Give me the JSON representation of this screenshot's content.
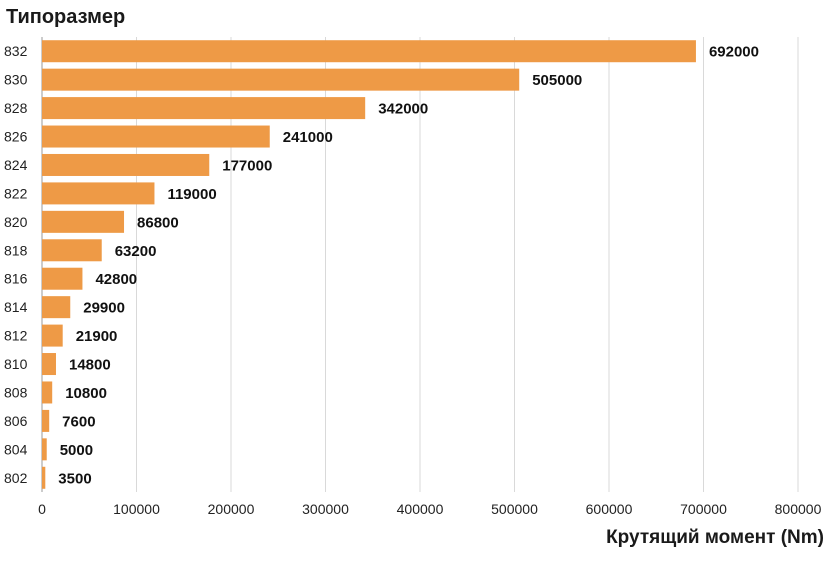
{
  "chart_data": {
    "type": "bar",
    "orientation": "horizontal",
    "ylabel": "Типоразмер",
    "xlabel": "Крутящий момент (Nm)",
    "categories": [
      "832",
      "830",
      "828",
      "826",
      "824",
      "822",
      "820",
      "818",
      "816",
      "814",
      "812",
      "810",
      "808",
      "806",
      "804",
      "802"
    ],
    "values": [
      692000,
      505000,
      342000,
      241000,
      177000,
      119000,
      86800,
      63200,
      42800,
      29900,
      21900,
      14800,
      10800,
      7600,
      5000,
      3500
    ],
    "data_labels": [
      "692000",
      "505000",
      "342000",
      "241000",
      "177000",
      "119000",
      "86800",
      "63200",
      "42800",
      "29900",
      "21900",
      "14800",
      "10800",
      "7600",
      "5000",
      "3500"
    ],
    "xlim": [
      0,
      800000
    ],
    "xticks": [
      0,
      100000,
      200000,
      300000,
      400000,
      500000,
      600000,
      700000,
      800000
    ],
    "xtick_labels": [
      "0",
      "100000",
      "200000",
      "300000",
      "400000",
      "500000",
      "600000",
      "700000",
      "800000"
    ],
    "grid": "vertical",
    "legend": "none",
    "bar_color": "#ee9a46"
  }
}
